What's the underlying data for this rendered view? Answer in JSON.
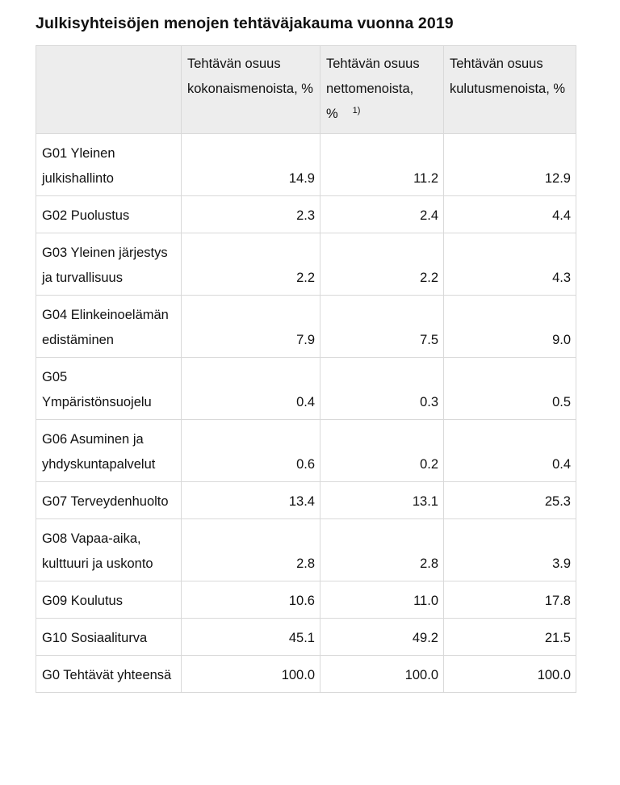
{
  "title": "Julkisyhteisöjen menojen tehtäväjakauma vuonna 2019",
  "columns": [
    {
      "label": "",
      "footnote": ""
    },
    {
      "label": "Tehtävän osuus kokonaismenoista, %",
      "footnote": ""
    },
    {
      "label": "Tehtävän osuus nettomenoista, %",
      "footnote": "1)"
    },
    {
      "label": "Tehtävän osuus kulutusmenoista, %",
      "footnote": ""
    }
  ],
  "rows": [
    {
      "label": "G01 Yleinen julkishallinto",
      "values": [
        "14.9",
        "11.2",
        "12.9"
      ]
    },
    {
      "label": "G02 Puolustus",
      "values": [
        "2.3",
        "2.4",
        "4.4"
      ]
    },
    {
      "label": "G03 Yleinen järjestys ja turvallisuus",
      "values": [
        "2.2",
        "2.2",
        "4.3"
      ]
    },
    {
      "label": "G04 Elinkeinoelämän edistäminen",
      "values": [
        "7.9",
        "7.5",
        "9.0"
      ]
    },
    {
      "label": "G05 Ympäristönsuojelu",
      "values": [
        "0.4",
        "0.3",
        "0.5"
      ]
    },
    {
      "label": "G06 Asuminen ja yhdyskuntapalvelut",
      "values": [
        "0.6",
        "0.2",
        "0.4"
      ]
    },
    {
      "label": "G07 Terveydenhuolto",
      "values": [
        "13.4",
        "13.1",
        "25.3"
      ]
    },
    {
      "label": "G08 Vapaa-aika, kulttuuri ja uskonto",
      "values": [
        "2.8",
        "2.8",
        "3.9"
      ]
    },
    {
      "label": "G09 Koulutus",
      "values": [
        "10.6",
        "11.0",
        "17.8"
      ]
    },
    {
      "label": "G10 Sosiaaliturva",
      "values": [
        "45.1",
        "49.2",
        "21.5"
      ]
    },
    {
      "label": "G0 Tehtävät yhteensä",
      "values": [
        "100.0",
        "100.0",
        "100.0"
      ]
    }
  ]
}
